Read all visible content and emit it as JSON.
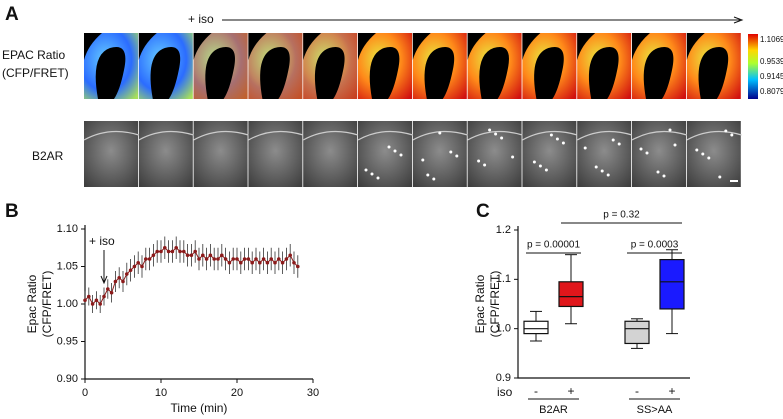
{
  "panel_labels": [
    "A",
    "B",
    "C"
  ],
  "panel_a": {
    "stimulus": "+ iso",
    "rows": [
      {
        "label": [
          "EPAC Ratio",
          "(CFP/FRET)"
        ]
      },
      {
        "label": [
          "B2AR"
        ]
      }
    ],
    "colorbar_labels": [
      "1.1069",
      "0.9539",
      "0.9145",
      "0.8079"
    ]
  },
  "chart_data": [
    {
      "type": "line",
      "x_label": "Time (min)",
      "y_label": [
        "Epac Ratio",
        "(CFP/FRET)"
      ],
      "annotation": "+ iso",
      "color": "#8b1a1a",
      "xlim": [
        0,
        30
      ],
      "xticks": [
        0,
        10,
        20,
        30
      ],
      "ylim": [
        0.9,
        1.1
      ],
      "yticks": [
        {
          "value": 0.9,
          "label": "0.90"
        },
        0.95,
        {
          "value": 1.0,
          "label": "1.00"
        },
        1.05,
        {
          "value": 1.1,
          "label": "1.10"
        }
      ],
      "x": [
        0,
        0.5,
        1,
        1.5,
        2,
        2.5,
        3,
        3.5,
        4,
        4.5,
        5,
        5.5,
        6,
        6.5,
        7,
        7.5,
        8,
        8.5,
        9,
        9.5,
        10,
        10.5,
        11,
        11.5,
        12,
        12.5,
        13,
        13.5,
        14,
        14.5,
        15,
        15.5,
        16,
        16.5,
        17,
        17.5,
        18,
        18.5,
        19,
        19.5,
        20,
        20.5,
        21,
        21.5,
        22,
        22.5,
        23,
        23.5,
        24,
        24.5,
        25,
        25.5,
        26,
        26.5,
        27,
        27.5,
        28
      ],
      "values": [
        1.005,
        1.01,
        1.0,
        1.005,
        1.0,
        1.01,
        1.02,
        1.015,
        1.03,
        1.035,
        1.03,
        1.04,
        1.045,
        1.05,
        1.055,
        1.05,
        1.06,
        1.06,
        1.065,
        1.07,
        1.07,
        1.075,
        1.07,
        1.07,
        1.075,
        1.07,
        1.07,
        1.065,
        1.065,
        1.07,
        1.06,
        1.065,
        1.06,
        1.065,
        1.06,
        1.06,
        1.065,
        1.06,
        1.055,
        1.06,
        1.06,
        1.055,
        1.06,
        1.06,
        1.055,
        1.06,
        1.055,
        1.06,
        1.055,
        1.06,
        1.055,
        1.06,
        1.055,
        1.06,
        1.065,
        1.055,
        1.05
      ],
      "errors": [
        0.012,
        0.012,
        0.012,
        0.012,
        0.012,
        0.012,
        0.013,
        0.013,
        0.014,
        0.014,
        0.014,
        0.015,
        0.015,
        0.015,
        0.015,
        0.015,
        0.015,
        0.015,
        0.015,
        0.015,
        0.015,
        0.015,
        0.015,
        0.015,
        0.015,
        0.015,
        0.015,
        0.015,
        0.015,
        0.015,
        0.015,
        0.015,
        0.015,
        0.015,
        0.015,
        0.015,
        0.015,
        0.015,
        0.015,
        0.015,
        0.015,
        0.015,
        0.015,
        0.015,
        0.015,
        0.015,
        0.015,
        0.015,
        0.015,
        0.015,
        0.015,
        0.015,
        0.015,
        0.015,
        0.015,
        0.015,
        0.015
      ]
    },
    {
      "type": "box",
      "y_label": [
        "Epac Ratio",
        "(CFP/FRET)"
      ],
      "row_label": "iso",
      "categories": [
        "-",
        "+",
        "-",
        "+"
      ],
      "groups": [
        "B2AR",
        "SS>AA"
      ],
      "ylim": [
        0.9,
        1.2
      ],
      "yticks": [
        0.9,
        {
          "value": 1.0,
          "label": "1.0"
        },
        1.1,
        1.2
      ],
      "boxes": [
        {
          "min": 0.975,
          "q1": 0.99,
          "median": 1.0,
          "q3": 1.015,
          "max": 1.035,
          "color": "#ffffff"
        },
        {
          "min": 1.01,
          "q1": 1.045,
          "median": 1.065,
          "q3": 1.095,
          "max": 1.15,
          "color": "#e0161b"
        },
        {
          "min": 0.96,
          "q1": 0.97,
          "median": 1.0,
          "q3": 1.015,
          "max": 1.02,
          "color": "#d3d3d3"
        },
        {
          "min": 0.99,
          "q1": 1.04,
          "median": 1.095,
          "q3": 1.14,
          "max": 1.16,
          "color": "#1a1aff"
        }
      ],
      "annotations": [
        "p = 0.00001",
        "p = 0.0003",
        "p = 0.32"
      ]
    }
  ]
}
